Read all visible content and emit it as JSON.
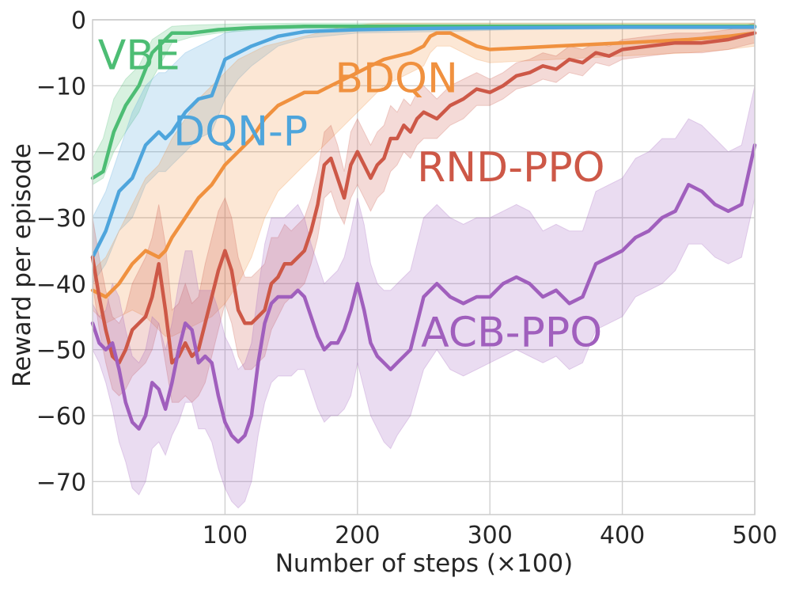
{
  "chart_data": {
    "type": "line",
    "title": "",
    "xlabel": "Number of steps (×100)",
    "ylabel": "Reward per episode",
    "xlim": [
      0,
      500
    ],
    "ylim": [
      -75,
      0
    ],
    "xticks": [
      100,
      200,
      300,
      400,
      500
    ],
    "yticks": [
      0,
      -10,
      -20,
      -30,
      -40,
      -50,
      -60,
      -70
    ],
    "grid": true,
    "legend": "inline labels",
    "series": [
      {
        "name": "VBE",
        "color": "#4dbd74",
        "x": [
          0,
          8,
          16,
          25,
          35,
          45,
          60,
          75,
          95,
          120,
          160,
          200,
          260,
          320,
          400,
          500
        ],
        "y": [
          -24,
          -23,
          -17,
          -13,
          -10,
          -5,
          -2,
          -2,
          -1.5,
          -1.2,
          -1,
          -1,
          -1,
          -1,
          -1,
          -1
        ],
        "lower": [
          -25,
          -24,
          -20,
          -17,
          -14,
          -9,
          -3.5,
          -2.6,
          -2,
          -1.6,
          -1.3,
          -1.2,
          -1.2,
          -1.2,
          -1.2,
          -1.2
        ],
        "upper": [
          -21,
          -18,
          -12,
          -9,
          -7,
          -3,
          -1,
          -0.8,
          -0.7,
          -0.6,
          -0.5,
          -0.5,
          -0.5,
          -0.5,
          -0.5,
          -0.5
        ]
      },
      {
        "name": "DQN-P",
        "color": "#4ea5dc",
        "x": [
          0,
          10,
          20,
          30,
          40,
          50,
          55,
          60,
          70,
          80,
          90,
          100,
          110,
          120,
          140,
          160,
          200,
          260,
          320,
          400,
          500
        ],
        "y": [
          -36,
          -32,
          -26,
          -24,
          -19,
          -17,
          -18,
          -17,
          -14,
          -12,
          -11.5,
          -6,
          -5,
          -4,
          -2.5,
          -1.8,
          -1.5,
          -1.3,
          -1.2,
          -1.1,
          -1.1
        ],
        "lower": [
          -40,
          -37,
          -32,
          -30,
          -25,
          -23,
          -23,
          -22,
          -20,
          -18,
          -17,
          -12,
          -9,
          -7,
          -4,
          -2.8,
          -2,
          -1.8,
          -1.5,
          -1.4,
          -1.4
        ],
        "upper": [
          -30,
          -26,
          -20,
          -14,
          -10,
          -8,
          -8,
          -7,
          -5,
          -4,
          -3,
          -2,
          -1.5,
          -1.2,
          -1,
          -0.8,
          -0.8,
          -0.8,
          -0.8,
          -0.8,
          -0.8
        ]
      },
      {
        "name": "BDQN",
        "color": "#f0913f",
        "x": [
          0,
          10,
          20,
          30,
          40,
          50,
          55,
          60,
          70,
          80,
          90,
          100,
          110,
          120,
          130,
          140,
          150,
          160,
          170,
          180,
          190,
          200,
          210,
          220,
          230,
          240,
          250,
          255,
          260,
          270,
          280,
          290,
          300,
          350,
          400,
          450,
          480,
          500
        ],
        "y": [
          -41,
          -42,
          -40,
          -37,
          -35,
          -36,
          -35,
          -33,
          -30,
          -27,
          -25,
          -22,
          -20,
          -18,
          -15,
          -13,
          -12,
          -11,
          -11,
          -10,
          -9,
          -8,
          -7,
          -6,
          -5.5,
          -5,
          -4,
          -2.5,
          -2,
          -2,
          -3,
          -4,
          -4.5,
          -4,
          -3.5,
          -3,
          -2.5,
          -2
        ],
        "lower": [
          -44,
          -46,
          -45,
          -44,
          -45,
          -47,
          -48,
          -48,
          -47,
          -46,
          -45,
          -43,
          -40,
          -36,
          -30,
          -26,
          -24,
          -22,
          -20,
          -18,
          -16,
          -14,
          -12,
          -10,
          -9,
          -8,
          -7,
          -5,
          -4,
          -4,
          -5,
          -6,
          -6.5,
          -6,
          -5.5,
          -5,
          -4.5,
          -4
        ],
        "upper": [
          -38,
          -36,
          -32,
          -28,
          -24,
          -22,
          -20,
          -18,
          -15,
          -12,
          -10,
          -8,
          -6,
          -5,
          -4,
          -3.5,
          -3,
          -2.5,
          -2,
          -1.5,
          -1,
          -0.8,
          -0.6,
          -0.5,
          -0.5,
          -0.5,
          -0.5,
          -0.5,
          -0.5,
          -0.5,
          -0.5,
          -0.5,
          -0.5,
          -0.5,
          -0.5,
          -0.5,
          -0.5,
          -0.5
        ]
      },
      {
        "name": "RND-PPO",
        "color": "#cd5847",
        "x": [
          0,
          5,
          10,
          15,
          20,
          25,
          30,
          35,
          40,
          45,
          50,
          55,
          60,
          65,
          70,
          75,
          80,
          85,
          90,
          95,
          100,
          105,
          110,
          115,
          120,
          125,
          130,
          135,
          140,
          145,
          150,
          155,
          160,
          165,
          170,
          175,
          180,
          185,
          190,
          195,
          200,
          205,
          210,
          215,
          220,
          225,
          230,
          235,
          240,
          245,
          250,
          260,
          270,
          280,
          290,
          300,
          310,
          320,
          330,
          340,
          350,
          360,
          370,
          380,
          390,
          400,
          420,
          440,
          460,
          480,
          490,
          500
        ],
        "y": [
          -36,
          -42,
          -47,
          -51,
          -52,
          -50,
          -47,
          -46,
          -45,
          -42,
          -37,
          -44,
          -52,
          -51,
          -49,
          -51,
          -50,
          -46,
          -42,
          -38,
          -35,
          -38,
          -44,
          -46,
          -46,
          -45,
          -44,
          -40,
          -39,
          -37,
          -37,
          -36,
          -35,
          -32,
          -28,
          -22,
          -21,
          -24,
          -27,
          -22,
          -20,
          -22,
          -24,
          -22,
          -21,
          -18,
          -18,
          -16,
          -17,
          -15,
          -14,
          -15,
          -13,
          -12,
          -10.5,
          -11,
          -10,
          -8.5,
          -8,
          -7,
          -7.5,
          -6,
          -6.5,
          -5,
          -5.5,
          -4.5,
          -4,
          -3.5,
          -3.5,
          -3,
          -2.5,
          -2
        ],
        "lower": [
          -40,
          -47,
          -52,
          -56,
          -57,
          -56,
          -54,
          -53,
          -52,
          -50,
          -46,
          -52,
          -58,
          -58,
          -57,
          -58,
          -57,
          -55,
          -51,
          -47,
          -43,
          -46,
          -51,
          -53,
          -53,
          -52,
          -51,
          -47,
          -45,
          -43,
          -42,
          -41,
          -40,
          -37,
          -33,
          -27,
          -26,
          -29,
          -31,
          -27,
          -25,
          -27,
          -29,
          -27,
          -26,
          -23,
          -22,
          -20,
          -21,
          -19,
          -18,
          -18,
          -16,
          -15,
          -13,
          -13,
          -12,
          -10.5,
          -10,
          -9,
          -9.5,
          -8,
          -8.5,
          -6.5,
          -7,
          -6,
          -5.5,
          -5,
          -5,
          -4.5,
          -4,
          -3.5
        ],
        "upper": [
          -30,
          -36,
          -41,
          -45,
          -46,
          -44,
          -40,
          -38,
          -36,
          -33,
          -28,
          -34,
          -44,
          -43,
          -40,
          -43,
          -42,
          -37,
          -33,
          -29,
          -27,
          -30,
          -36,
          -39,
          -39,
          -38,
          -37,
          -33,
          -33,
          -31,
          -32,
          -31,
          -30,
          -27,
          -23,
          -17,
          -16,
          -19,
          -23,
          -17,
          -15,
          -17,
          -19,
          -17,
          -16,
          -13,
          -14,
          -12,
          -13,
          -11,
          -10,
          -12,
          -10,
          -9,
          -8,
          -9,
          -8,
          -6.5,
          -6,
          -5,
          -5.5,
          -4,
          -4.5,
          -3.5,
          -4,
          -3,
          -2.5,
          -2,
          -2,
          -1.5,
          -1,
          -0.5
        ]
      },
      {
        "name": "ACB-PPO",
        "color": "#a05fbd",
        "x": [
          0,
          5,
          10,
          15,
          20,
          25,
          30,
          35,
          40,
          45,
          50,
          55,
          60,
          65,
          70,
          75,
          80,
          85,
          90,
          95,
          100,
          105,
          110,
          115,
          120,
          125,
          130,
          135,
          140,
          145,
          150,
          155,
          160,
          165,
          170,
          175,
          180,
          185,
          190,
          195,
          200,
          205,
          210,
          215,
          220,
          225,
          230,
          240,
          250,
          260,
          270,
          280,
          290,
          300,
          310,
          320,
          330,
          340,
          350,
          360,
          370,
          380,
          390,
          400,
          410,
          420,
          430,
          440,
          450,
          460,
          470,
          480,
          490,
          500
        ],
        "y": [
          -46,
          -49,
          -50,
          -49,
          -53,
          -58,
          -61,
          -62,
          -60,
          -55,
          -56,
          -59,
          -55,
          -50,
          -46,
          -47,
          -52,
          -51,
          -52,
          -57,
          -61,
          -63,
          -64,
          -63,
          -60,
          -52,
          -46,
          -43,
          -42,
          -42,
          -42,
          -41,
          -42,
          -45,
          -48,
          -50,
          -49,
          -49,
          -47,
          -44,
          -40,
          -44,
          -49,
          -51,
          -52,
          -53,
          -52,
          -50,
          -42,
          -40,
          -42,
          -43,
          -42,
          -42,
          -40,
          -39,
          -40,
          -42,
          -41,
          -43,
          -42,
          -37,
          -36,
          -35,
          -33,
          -32,
          -30,
          -29,
          -25,
          -26,
          -28,
          -29,
          -28,
          -19
        ],
        "lower": [
          -50,
          -52,
          -55,
          -59,
          -64,
          -67,
          -71,
          -72,
          -70,
          -65,
          -64,
          -66,
          -63,
          -61,
          -58,
          -58,
          -62,
          -62,
          -64,
          -68,
          -71,
          -73,
          -74,
          -73,
          -70,
          -63,
          -58,
          -55,
          -54,
          -54,
          -54,
          -53,
          -53,
          -56,
          -59,
          -61,
          -60,
          -60,
          -59,
          -57,
          -52,
          -56,
          -60,
          -62,
          -64,
          -65,
          -63,
          -60,
          -53,
          -50,
          -53,
          -54,
          -53,
          -52,
          -51,
          -50,
          -51,
          -52,
          -51,
          -53,
          -52,
          -47,
          -46,
          -45,
          -42,
          -41,
          -40,
          -38,
          -34,
          -34,
          -36,
          -37,
          -36,
          -27
        ],
        "upper": [
          -43,
          -45,
          -44,
          -40,
          -42,
          -47,
          -51,
          -52,
          -50,
          -45,
          -46,
          -50,
          -46,
          -40,
          -35,
          -35,
          -41,
          -41,
          -41,
          -44,
          -48,
          -50,
          -53,
          -52,
          -49,
          -41,
          -34,
          -30,
          -30,
          -30,
          -29,
          -28,
          -30,
          -34,
          -37,
          -40,
          -39,
          -38,
          -36,
          -32,
          -27,
          -31,
          -37,
          -40,
          -41,
          -41,
          -40,
          -38,
          -30,
          -28,
          -30,
          -31,
          -30,
          -30,
          -29,
          -28,
          -29,
          -32,
          -31,
          -32,
          -32,
          -26,
          -25,
          -24,
          -21,
          -20,
          -18,
          -18,
          -15,
          -16,
          -18,
          -20,
          -19,
          -10
        ]
      }
    ],
    "annotations": [
      {
        "text": "VBE",
        "x": 4,
        "y": -7.5
      },
      {
        "text": "DQN-P",
        "x": 61,
        "y": -19
      },
      {
        "text": "BDQN",
        "x": 183,
        "y": -11
      },
      {
        "text": "RND-PPO",
        "x": 245,
        "y": -24.5
      },
      {
        "text": "ACB-PPO",
        "x": 248,
        "y": -49.5
      }
    ]
  }
}
